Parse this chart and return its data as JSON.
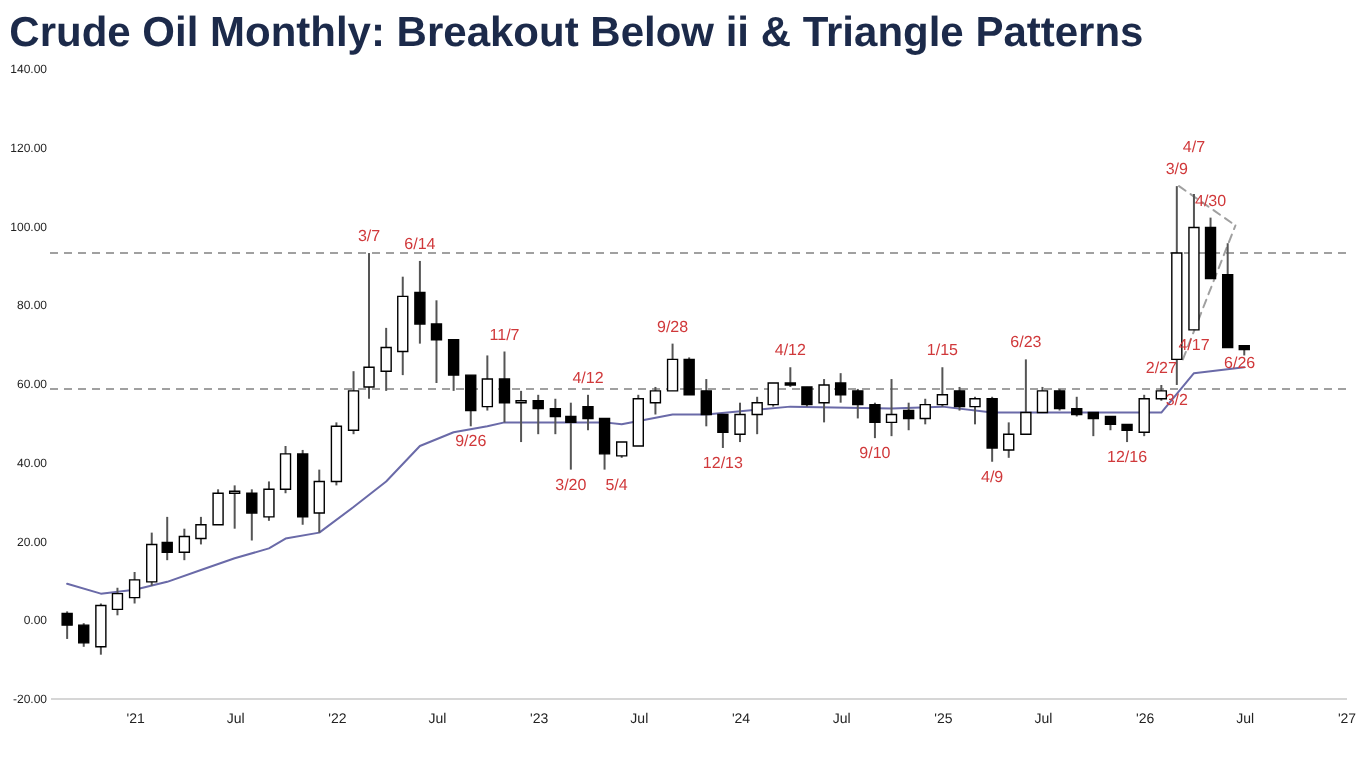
{
  "chart_data": {
    "type": "candlestick",
    "title": "Crude Oil Monthly: Breakout Below ii & Triangle Patterns",
    "x": [
      "2020-09",
      "2020-10",
      "2020-11",
      "2020-12",
      "2021-01",
      "2021-02",
      "2021-03",
      "2021-04",
      "2021-05",
      "2021-06",
      "2021-07",
      "2021-08",
      "2021-09",
      "2021-10",
      "2021-11",
      "2021-12",
      "2022-01",
      "2022-02",
      "2022-03",
      "2022-04",
      "2022-05",
      "2022-06",
      "2022-07",
      "2022-08",
      "2022-09",
      "2022-10",
      "2022-11",
      "2022-12",
      "2023-01",
      "2023-02",
      "2023-03",
      "2023-04",
      "2023-05",
      "2023-06",
      "2023-07",
      "2023-08",
      "2023-09",
      "2023-10",
      "2023-11",
      "2023-12",
      "2024-01",
      "2024-02",
      "2024-03",
      "2024-04",
      "2024-05",
      "2024-06",
      "2024-07",
      "2024-08",
      "2024-09",
      "2024-10",
      "2024-11",
      "2024-12",
      "2025-01",
      "2025-02",
      "2025-03",
      "2025-04",
      "2025-05",
      "2025-06",
      "2025-07",
      "2025-08",
      "2025-09",
      "2025-10",
      "2025-11",
      "2025-12",
      "2026-01",
      "2026-02",
      "2026-03",
      "2026-04",
      "2026-05",
      "2026-06",
      "2026-07"
    ],
    "ohlc": [
      [
        1.5,
        2,
        -5,
        -1.5
      ],
      [
        -1.5,
        -1,
        -7,
        -6
      ],
      [
        -7,
        4,
        -9,
        3.5
      ],
      [
        2.5,
        8,
        1,
        6.5
      ],
      [
        5.5,
        12,
        4,
        10
      ],
      [
        9.5,
        22,
        8.5,
        19
      ],
      [
        19.5,
        26,
        15,
        17
      ],
      [
        17,
        23,
        15,
        21
      ],
      [
        20.5,
        26,
        19,
        24
      ],
      [
        24,
        33,
        24,
        32
      ],
      [
        32,
        34,
        23,
        32.5
      ],
      [
        32,
        33,
        20,
        27
      ],
      [
        26,
        35,
        25,
        33
      ],
      [
        33,
        44,
        32,
        42
      ],
      [
        42,
        43,
        24,
        26
      ],
      [
        27,
        38,
        22,
        35
      ],
      [
        35,
        50,
        34,
        49
      ],
      [
        48,
        63,
        47,
        58
      ],
      [
        59,
        93,
        56,
        64
      ],
      [
        63,
        74,
        58,
        69
      ],
      [
        68,
        87,
        62,
        82
      ],
      [
        83,
        91,
        70,
        75
      ],
      [
        75,
        81,
        60,
        71
      ],
      [
        71,
        71,
        58,
        62
      ],
      [
        62,
        62,
        49,
        53
      ],
      [
        54,
        67,
        53,
        61
      ],
      [
        61,
        68,
        50,
        55
      ],
      [
        55,
        58,
        45,
        55.5
      ],
      [
        55.5,
        57,
        47,
        53.5
      ],
      [
        53.5,
        56,
        47,
        51.5
      ],
      [
        51.5,
        55,
        38,
        50
      ],
      [
        54,
        57,
        48,
        51
      ],
      [
        51,
        51,
        38,
        42
      ],
      [
        41.5,
        45,
        41,
        45
      ],
      [
        44,
        57,
        44,
        56
      ],
      [
        55,
        59,
        52,
        58
      ],
      [
        58,
        70,
        58,
        66
      ],
      [
        66,
        66.5,
        57,
        57
      ],
      [
        58,
        61,
        49,
        52
      ],
      [
        52,
        52,
        43.5,
        47.5
      ],
      [
        47,
        55,
        45,
        52
      ],
      [
        52,
        56.5,
        47,
        55
      ],
      [
        54.5,
        60,
        54,
        60
      ],
      [
        60,
        64,
        59,
        59.5
      ],
      [
        59,
        59,
        54,
        54.5
      ],
      [
        55,
        61,
        50,
        59.5
      ],
      [
        60,
        62.5,
        55,
        57
      ],
      [
        58,
        58.5,
        51,
        54.5
      ],
      [
        54.5,
        55,
        46,
        50
      ],
      [
        50,
        61,
        46.5,
        52
      ],
      [
        53,
        55,
        48,
        51
      ],
      [
        51,
        56,
        49.5,
        54.5
      ],
      [
        54.5,
        64,
        54,
        57
      ],
      [
        58,
        59,
        53,
        54
      ],
      [
        54,
        56.5,
        49.5,
        56
      ],
      [
        56,
        56.5,
        40,
        43.5
      ],
      [
        43,
        50,
        41,
        47
      ],
      [
        47,
        66,
        47,
        52.5
      ],
      [
        52.5,
        59,
        52.5,
        58
      ],
      [
        58,
        58.5,
        53,
        53.5
      ],
      [
        53.5,
        56.5,
        51.5,
        52
      ],
      [
        52.5,
        52.5,
        46.5,
        51
      ],
      [
        51.5,
        51.5,
        48,
        49.5
      ],
      [
        49.5,
        49.5,
        45,
        48
      ],
      [
        47.5,
        57,
        46.5,
        56
      ],
      [
        56,
        59.5,
        55.5,
        58
      ],
      [
        66,
        110,
        59.5,
        93
      ],
      [
        73.5,
        108,
        73.5,
        99.5
      ],
      [
        99.5,
        102,
        86.5,
        86.5
      ],
      [
        87.5,
        95.5,
        69,
        69
      ],
      [
        69.5,
        69.5,
        67,
        68.5
      ]
    ],
    "series": [
      {
        "type": "line",
        "color": "#6a6aa8",
        "x": [
          "2020-09",
          "2020-11",
          "2021-01",
          "2021-03",
          "2021-05",
          "2021-07",
          "2021-09",
          "2021-10",
          "2021-12",
          "2022-02",
          "2022-04",
          "2022-06",
          "2022-08",
          "2022-10",
          "2022-11",
          "2023-01",
          "2023-05",
          "2023-06",
          "2023-09",
          "2023-11",
          "2024-04",
          "2024-10",
          "2025-01",
          "2025-04",
          "2025-10",
          "2026-02",
          "2026-04",
          "2026-07"
        ],
        "values": [
          9,
          6.5,
          7.5,
          9.5,
          12.5,
          15.5,
          18,
          20.5,
          22,
          28.5,
          35,
          44,
          47.5,
          49,
          50,
          50,
          50,
          49.5,
          52,
          52,
          54,
          53.5,
          54,
          52.5,
          52.5,
          52.5,
          62.5,
          64
        ]
      },
      {
        "type": "line",
        "line_style": "dashed",
        "color": "#a0a0a0",
        "x": [
          "2026-03-05",
          "2026-06-15"
        ],
        "values": [
          110,
          100
        ]
      },
      {
        "type": "line",
        "line_style": "dashed",
        "color": "#a0a0a0",
        "x": [
          "2026-03-12",
          "2026-06-15"
        ],
        "values": [
          66,
          100
        ]
      }
    ],
    "ref_lines": [
      {
        "axis": "y",
        "value": 93,
        "line_style": "dashed",
        "color": "#a0a0a0"
      },
      {
        "axis": "y",
        "value": 58.5,
        "line_style": "dashed",
        "color": "#a0a0a0"
      }
    ],
    "annotations": [
      {
        "text": "3/7",
        "x": "2022-03",
        "y": 93
      },
      {
        "text": "6/14",
        "x": "2022-06",
        "y": 91
      },
      {
        "text": "11/7",
        "x": "2022-11",
        "y": 68
      },
      {
        "text": "9/26",
        "x": "2022-09",
        "y": 49
      },
      {
        "text": "4/12",
        "x": "2023-04",
        "y": 57
      },
      {
        "text": "3/20",
        "x": "2023-03",
        "y": 38
      },
      {
        "text": "5/4",
        "x": "2023-05",
        "y": 38
      },
      {
        "text": "9/28",
        "x": "2023-09",
        "y": 70
      },
      {
        "text": "12/13",
        "x": "2023-12",
        "y": 43.5
      },
      {
        "text": "4/12",
        "x": "2024-04",
        "y": 64
      },
      {
        "text": "9/10",
        "x": "2024-09",
        "y": 46
      },
      {
        "text": "1/15",
        "x": "2025-01",
        "y": 64
      },
      {
        "text": "6/23",
        "x": "2025-06",
        "y": 66
      },
      {
        "text": "4/9",
        "x": "2025-04",
        "y": 40
      },
      {
        "text": "12/16",
        "x": "2025-12",
        "y": 45
      },
      {
        "text": "3/9",
        "x": "2026-03",
        "y": 110
      },
      {
        "text": "4/7",
        "x": "2026-04",
        "y": 108
      },
      {
        "text": "4/30",
        "x": "2026-05",
        "y": 102
      },
      {
        "text": "2/27",
        "x": "2026-02",
        "y": 59.5
      },
      {
        "text": "4/17",
        "x": "2026-04",
        "y": 73.5
      },
      {
        "text": "3/2",
        "x": "2026-03",
        "y": 59.5
      },
      {
        "text": "6/26",
        "x": "2026-06",
        "y": 69
      }
    ],
    "xlim": [
      "2020-08",
      "2027-01"
    ],
    "xticks": [
      {
        "value": "2021-01",
        "label": "'21"
      },
      {
        "value": "2021-07",
        "label": "Jul"
      },
      {
        "value": "2022-01",
        "label": "'22"
      },
      {
        "value": "2022-07",
        "label": "Jul"
      },
      {
        "value": "2023-01",
        "label": "'23"
      },
      {
        "value": "2023-07",
        "label": "Jul"
      },
      {
        "value": "2024-01",
        "label": "'24"
      },
      {
        "value": "2024-07",
        "label": "Jul"
      },
      {
        "value": "2025-01",
        "label": "'25"
      },
      {
        "value": "2025-07",
        "label": "Jul"
      },
      {
        "value": "2026-01",
        "label": "'26"
      },
      {
        "value": "2026-07",
        "label": "Jul"
      },
      {
        "value": "2027-01",
        "label": "'27"
      }
    ],
    "ylim": [
      -20,
      140
    ],
    "yticks": [
      {
        "value": -20,
        "label": "-20.00"
      },
      {
        "value": 0,
        "label": "0.00"
      },
      {
        "value": 20,
        "label": "20.00"
      },
      {
        "value": 40,
        "label": "40.00"
      },
      {
        "value": 60,
        "label": "60.00"
      },
      {
        "value": 80,
        "label": "80.00"
      },
      {
        "value": 100,
        "label": "100.00"
      },
      {
        "value": 120,
        "label": "120.00"
      },
      {
        "value": 140,
        "label": "140.00"
      }
    ],
    "grid": false
  }
}
